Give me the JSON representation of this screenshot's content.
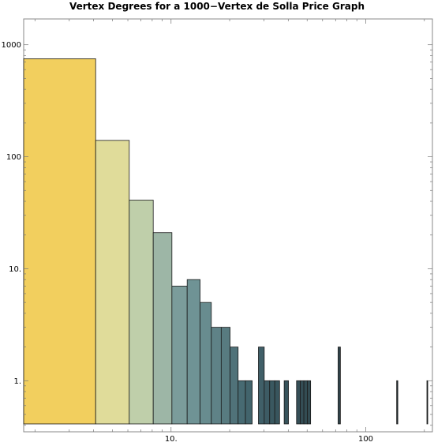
{
  "chart_data": {
    "type": "bar",
    "title": "Vertex Degrees for a 1000−Vertex de Solla Price Graph",
    "x_scale": "log",
    "y_scale": "log",
    "xlim": [
      1.75,
      220
    ],
    "ylim": [
      0.35,
      1700
    ],
    "x_ticks": [
      {
        "value": 10,
        "label": "10."
      },
      {
        "value": 100,
        "label": "100"
      }
    ],
    "y_ticks": [
      {
        "value": 1,
        "label": "1."
      },
      {
        "value": 10,
        "label": "10."
      },
      {
        "value": 100,
        "label": "100"
      },
      {
        "value": 1000,
        "label": "1000"
      }
    ],
    "bins": [
      {
        "x0": 1.75,
        "x1": 4.1,
        "count": 750,
        "color": "#f2cf5e"
      },
      {
        "x0": 4.1,
        "x1": 6.1,
        "count": 140,
        "color": "#e0dc9a"
      },
      {
        "x0": 6.1,
        "x1": 8.1,
        "count": 41,
        "color": "#bfcfaa"
      },
      {
        "x0": 8.1,
        "x1": 10.1,
        "count": 21,
        "color": "#9db6a6"
      },
      {
        "x0": 10.1,
        "x1": 12.1,
        "count": 7,
        "color": "#7b9c9b"
      },
      {
        "x0": 12.1,
        "x1": 14.1,
        "count": 8,
        "color": "#6f9395"
      },
      {
        "x0": 14.1,
        "x1": 16.1,
        "count": 5,
        "color": "#688c8f"
      },
      {
        "x0": 16.1,
        "x1": 18.1,
        "count": 3,
        "color": "#5f8287"
      },
      {
        "x0": 18.1,
        "x1": 20.1,
        "count": 3,
        "color": "#587b80"
      },
      {
        "x0": 20.1,
        "x1": 22.1,
        "count": 2,
        "color": "#507279"
      },
      {
        "x0": 22.1,
        "x1": 24.1,
        "count": 1,
        "color": "#476a72"
      },
      {
        "x0": 24.1,
        "x1": 26.1,
        "count": 1,
        "color": "#42646c"
      },
      {
        "x0": 28.1,
        "x1": 30.1,
        "count": 2,
        "color": "#405f68"
      },
      {
        "x0": 30.1,
        "x1": 32.1,
        "count": 1,
        "color": "#3d5b64"
      },
      {
        "x0": 32.1,
        "x1": 34.1,
        "count": 1,
        "color": "#3a5860"
      },
      {
        "x0": 34.1,
        "x1": 36.1,
        "count": 1,
        "color": "#38555d"
      },
      {
        "x0": 38.1,
        "x1": 40.1,
        "count": 1,
        "color": "#37535b"
      },
      {
        "x0": 44.1,
        "x1": 46.1,
        "count": 1,
        "color": "#354f57"
      },
      {
        "x0": 46.1,
        "x1": 48.1,
        "count": 1,
        "color": "#344d55"
      },
      {
        "x0": 48.1,
        "x1": 50.1,
        "count": 1,
        "color": "#334c53"
      },
      {
        "x0": 50.1,
        "x1": 52.1,
        "count": 1,
        "color": "#324a51"
      },
      {
        "x0": 72.1,
        "x1": 74.1,
        "count": 2,
        "color": "#2e4249"
      },
      {
        "x0": 144.1,
        "x1": 146.1,
        "count": 1,
        "color": "#1e2c31"
      },
      {
        "x0": 206.1,
        "x1": 208.1,
        "count": 1,
        "color": "#182429"
      }
    ]
  }
}
